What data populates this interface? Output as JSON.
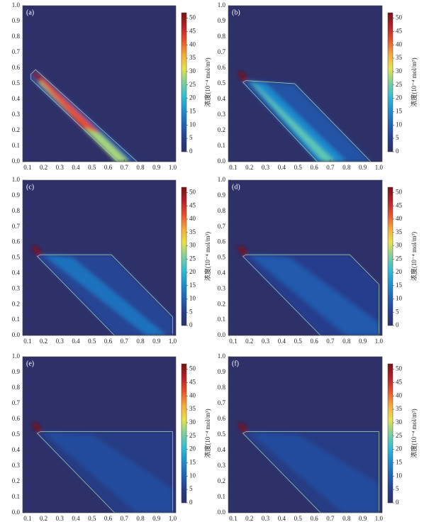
{
  "chart_data": [
    {
      "type": "heatmap",
      "title": "(a)",
      "colorbar_label": "浓度(10⁻⁴ mol/m³)",
      "xlim": [
        0.07,
        1.02
      ],
      "ylim": [
        0,
        1
      ],
      "xticks": [
        0.1,
        0.2,
        0.3,
        0.4,
        0.5,
        0.6,
        0.7,
        0.8,
        0.9,
        {
          "value": 1,
          "label": "1.0"
        }
      ],
      "yticks": [
        {
          "value": 0,
          "label": "0.0"
        },
        0.1,
        0.2,
        0.3,
        0.4,
        0.5,
        0.6,
        0.7,
        0.8,
        0.9,
        {
          "value": 1,
          "label": "1.0"
        }
      ],
      "clim": [
        0,
        52
      ],
      "cticks": [
        0,
        5,
        10,
        15,
        20,
        25,
        30,
        35,
        40,
        45,
        50
      ],
      "colormap": [
        "#2e3068",
        "#263f8f",
        "#1f64b8",
        "#1e90d0",
        "#2fbfd6",
        "#7fcf9c",
        "#e8e34a",
        "#f7a93a",
        "#e8532b",
        "#b8202a",
        "#7a1014"
      ],
      "regions": [
        {
          "x": [
            0.12,
            0.15,
            0.78,
            0.66,
            0.12
          ],
          "y": [
            0.56,
            0.59,
            0,
            0,
            0.53
          ],
          "value": 8
        },
        {
          "x": [
            0.14,
            0.16,
            0.73,
            0.65,
            0.14
          ],
          "y": [
            0.56,
            0.57,
            0,
            0,
            0.54
          ],
          "value": 28
        },
        {
          "x": [
            0.14,
            0.17,
            0.55,
            0.44
          ],
          "y": [
            0.56,
            0.56,
            0.18,
            0.22
          ],
          "value": 42
        },
        {
          "x": [
            0.13,
            0.16,
            0.19,
            0.17,
            0.14
          ],
          "y": [
            0.58,
            0.57,
            0.53,
            0.51,
            0.54
          ],
          "value": 52
        }
      ]
    },
    {
      "type": "heatmap",
      "title": "(b)",
      "colorbar_label": "浓度(10⁻⁴ mol/m³)",
      "xlim": [
        0.07,
        1.02
      ],
      "ylim": [
        0,
        1
      ],
      "xticks": [
        0.1,
        0.2,
        0.3,
        0.4,
        0.5,
        0.6,
        0.7,
        0.8,
        0.9,
        {
          "value": 1,
          "label": "1.0"
        }
      ],
      "yticks": [
        {
          "value": 0,
          "label": "0.0"
        },
        0.1,
        0.2,
        0.3,
        0.4,
        0.5,
        0.6,
        0.7,
        0.8,
        0.9,
        {
          "value": 1,
          "label": "1.0"
        }
      ],
      "clim": [
        0,
        52
      ],
      "cticks": [
        0,
        5,
        10,
        15,
        20,
        25,
        30,
        35,
        40,
        45,
        50
      ],
      "colormap": [
        "#2e3068",
        "#263f8f",
        "#1f64b8",
        "#1e90d0",
        "#2fbfd6",
        "#7fcf9c",
        "#e8e34a",
        "#f7a93a",
        "#e8532b",
        "#b8202a",
        "#7a1014"
      ],
      "regions": [
        {
          "x": [
            0.18,
            0.48,
            0.95,
            0.62,
            0.16
          ],
          "y": [
            0.52,
            0.5,
            0,
            0,
            0.51
          ],
          "value": 8
        },
        {
          "x": [
            0.2,
            0.3,
            0.8,
            0.62
          ],
          "y": [
            0.52,
            0.5,
            0,
            0
          ],
          "value": 15
        },
        {
          "x": [
            0.2,
            0.25,
            0.73,
            0.66
          ],
          "y": [
            0.52,
            0.48,
            0,
            0
          ],
          "value": 24
        },
        {
          "x": [
            0.13,
            0.16,
            0.19,
            0.17,
            0.14
          ],
          "y": [
            0.58,
            0.57,
            0.53,
            0.51,
            0.54
          ],
          "value": 52
        }
      ]
    },
    {
      "type": "heatmap",
      "title": "(c)",
      "colorbar_label": "浓度(10⁻⁴ mol/m³)",
      "xlim": [
        0.07,
        1.02
      ],
      "ylim": [
        0,
        1
      ],
      "xticks": [
        0.1,
        0.2,
        0.3,
        0.4,
        0.5,
        0.6,
        0.7,
        0.8,
        0.9,
        {
          "value": 1,
          "label": "1.0"
        }
      ],
      "yticks": [
        {
          "value": 0,
          "label": "0.0"
        },
        0.1,
        0.2,
        0.3,
        0.4,
        0.5,
        0.6,
        0.7,
        0.8,
        0.9,
        {
          "value": 1,
          "label": "1.0"
        }
      ],
      "clim": [
        0,
        52
      ],
      "cticks": [
        0,
        5,
        10,
        15,
        20,
        25,
        30,
        35,
        40,
        45,
        50
      ],
      "colormap": [
        "#2e3068",
        "#263f8f",
        "#1f64b8",
        "#1e90d0",
        "#2fbfd6",
        "#7fcf9c",
        "#e8e34a",
        "#f7a93a",
        "#e8532b",
        "#b8202a",
        "#7a1014"
      ],
      "regions": [
        {
          "x": [
            0.18,
            0.62,
            1,
            1,
            0.64,
            0.16
          ],
          "y": [
            0.52,
            0.52,
            0.12,
            0,
            0,
            0.51
          ],
          "value": 6
        },
        {
          "x": [
            0.2,
            0.38,
            0.96,
            0.84
          ],
          "y": [
            0.52,
            0.5,
            0,
            0
          ],
          "value": 12
        },
        {
          "x": [
            0.13,
            0.16,
            0.19,
            0.17,
            0.14
          ],
          "y": [
            0.58,
            0.57,
            0.53,
            0.51,
            0.54
          ],
          "value": 52
        }
      ]
    },
    {
      "type": "heatmap",
      "title": "(d)",
      "colorbar_label": "浓度(10⁻⁴ mol/m³)",
      "xlim": [
        0.07,
        1.02
      ],
      "ylim": [
        0,
        1
      ],
      "xticks": [
        0.1,
        0.2,
        0.3,
        0.4,
        0.5,
        0.6,
        0.7,
        0.8,
        0.9,
        {
          "value": 1,
          "label": "1.0"
        }
      ],
      "yticks": [
        {
          "value": 0,
          "label": "0.0"
        },
        0.1,
        0.2,
        0.3,
        0.4,
        0.5,
        0.6,
        0.7,
        0.8,
        0.9,
        {
          "value": 1,
          "label": "1.0"
        }
      ],
      "clim": [
        0,
        52
      ],
      "cticks": [
        0,
        5,
        10,
        15,
        20,
        25,
        30,
        35,
        40,
        45,
        50
      ],
      "colormap": [
        "#2e3068",
        "#263f8f",
        "#1f64b8",
        "#1e90d0",
        "#2fbfd6",
        "#7fcf9c",
        "#e8e34a",
        "#f7a93a",
        "#e8532b",
        "#b8202a",
        "#7a1014"
      ],
      "regions": [
        {
          "x": [
            0.18,
            0.82,
            1,
            1,
            0.64,
            0.16
          ],
          "y": [
            0.52,
            0.52,
            0.33,
            0,
            0,
            0.51
          ],
          "value": 5
        },
        {
          "x": [
            0.2,
            0.45,
            1,
            1,
            0.8
          ],
          "y": [
            0.52,
            0.5,
            0.08,
            0,
            0
          ],
          "value": 9
        },
        {
          "x": [
            0.13,
            0.16,
            0.19,
            0.17,
            0.14
          ],
          "y": [
            0.58,
            0.57,
            0.53,
            0.51,
            0.54
          ],
          "value": 52
        }
      ]
    },
    {
      "type": "heatmap",
      "title": "(e)",
      "colorbar_label": "浓度(10⁻⁴ mol/m³)",
      "xlim": [
        0.07,
        1.02
      ],
      "ylim": [
        0,
        1
      ],
      "xticks": [
        0.1,
        0.2,
        0.3,
        0.4,
        0.5,
        0.6,
        0.7,
        0.8,
        0.9,
        {
          "value": 1,
          "label": "1.0"
        }
      ],
      "yticks": [
        {
          "value": 0,
          "label": "0.0"
        },
        0.1,
        0.2,
        0.3,
        0.4,
        0.5,
        0.6,
        0.7,
        0.8,
        0.9,
        {
          "value": 1,
          "label": "1.0"
        }
      ],
      "clim": [
        0,
        52
      ],
      "cticks": [
        0,
        5,
        10,
        15,
        20,
        25,
        30,
        35,
        40,
        45,
        50
      ],
      "colormap": [
        "#2e3068",
        "#263f8f",
        "#1f64b8",
        "#1e90d0",
        "#2fbfd6",
        "#7fcf9c",
        "#e8e34a",
        "#f7a93a",
        "#e8532b",
        "#b8202a",
        "#7a1014"
      ],
      "regions": [
        {
          "x": [
            0.18,
            1,
            1,
            0.64,
            0.16
          ],
          "y": [
            0.52,
            0.52,
            0,
            0,
            0.51
          ],
          "value": 4
        },
        {
          "x": [
            0.2,
            0.5,
            1,
            1,
            0.78
          ],
          "y": [
            0.52,
            0.5,
            0.15,
            0,
            0
          ],
          "value": 7
        },
        {
          "x": [
            0.13,
            0.16,
            0.19,
            0.17,
            0.14
          ],
          "y": [
            0.58,
            0.57,
            0.53,
            0.51,
            0.54
          ],
          "value": 52
        }
      ]
    },
    {
      "type": "heatmap",
      "title": "(f)",
      "colorbar_label": "浓度(10⁻⁴ mol/m³)",
      "xlim": [
        0.07,
        1.02
      ],
      "ylim": [
        0,
        1
      ],
      "xticks": [
        0.1,
        0.2,
        0.3,
        0.4,
        0.5,
        0.6,
        0.7,
        0.8,
        0.9,
        {
          "value": 1,
          "label": "1.0"
        }
      ],
      "yticks": [
        {
          "value": 0,
          "label": "0.0"
        },
        0.1,
        0.2,
        0.3,
        0.4,
        0.5,
        0.6,
        0.7,
        0.8,
        0.9,
        {
          "value": 1,
          "label": "1.0"
        }
      ],
      "clim": [
        0,
        52
      ],
      "cticks": [
        0,
        5,
        10,
        15,
        20,
        25,
        30,
        35,
        40,
        45,
        50
      ],
      "colormap": [
        "#2e3068",
        "#263f8f",
        "#1f64b8",
        "#1e90d0",
        "#2fbfd6",
        "#7fcf9c",
        "#e8e34a",
        "#f7a93a",
        "#e8532b",
        "#b8202a",
        "#7a1014"
      ],
      "regions": [
        {
          "x": [
            0.18,
            1,
            1,
            0.64,
            0.16
          ],
          "y": [
            0.52,
            0.52,
            0,
            0,
            0.51
          ],
          "value": 4
        },
        {
          "x": [
            0.2,
            0.5,
            1,
            1,
            0.78
          ],
          "y": [
            0.52,
            0.5,
            0.18,
            0,
            0
          ],
          "value": 7
        },
        {
          "x": [
            0.13,
            0.16,
            0.19,
            0.17,
            0.14
          ],
          "y": [
            0.58,
            0.57,
            0.53,
            0.51,
            0.54
          ],
          "value": 52
        }
      ]
    }
  ]
}
